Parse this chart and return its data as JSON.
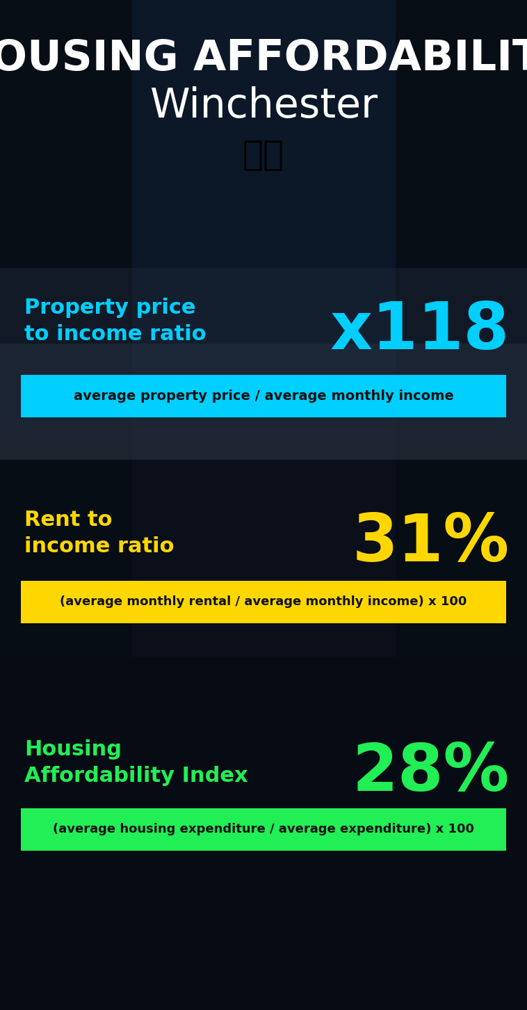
{
  "title_line1": "HOUSING AFFORDABILITY",
  "title_line2": "Winchester",
  "flag_emoji": "🇬🇧",
  "section1_label": "Property price\nto income ratio",
  "section1_value": "x118",
  "section1_sublabel": "average property price / average monthly income",
  "section1_label_color": "#00CFFF",
  "section1_value_color": "#00CFFF",
  "section1_bar_color": "#00CFFF",
  "section2_label": "Rent to\nincome ratio",
  "section2_value": "31%",
  "section2_sublabel": "(average monthly rental / average monthly income) x 100",
  "section2_label_color": "#FFD700",
  "section2_value_color": "#FFD700",
  "section2_bar_color": "#FFD700",
  "section3_label": "Housing\nAffordability Index",
  "section3_value": "28%",
  "section3_sublabel": "(average housing expenditure / average expenditure) x 100",
  "section3_label_color": "#22EE55",
  "section3_value_color": "#22EE55",
  "section3_bar_color": "#22EE55",
  "bg_color": "#0a0f1a",
  "title_color": "#FFFFFF",
  "sublabel_text_color": "#111111",
  "fig_width": 7.58,
  "fig_height": 14.52,
  "dpi": 100
}
